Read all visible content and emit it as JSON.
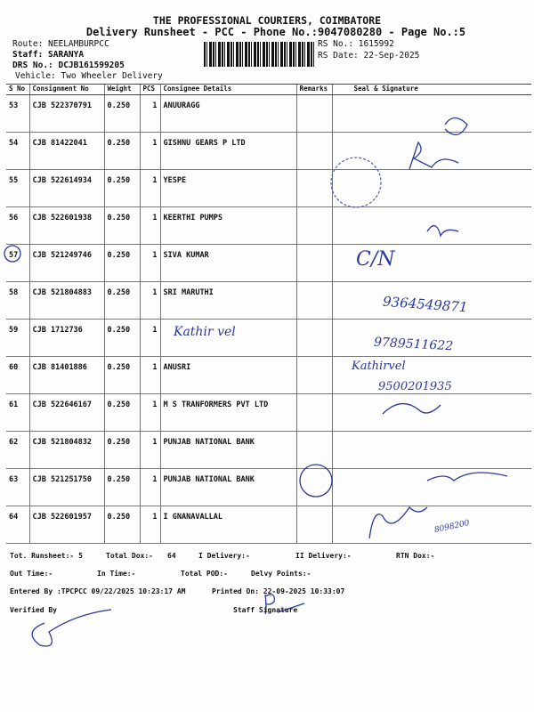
{
  "header": {
    "title": "THE PROFESSIONAL COURIERS, COIMBATORE",
    "subtitle": "Delivery Runsheet - PCC - Phone No.:9047080280 - Page No.:5",
    "route": "Route: NEELAMBURPCC",
    "staff": "Staff: SARANYA",
    "drs_no": "DRS No.: DCJB161599205",
    "vehicle": "Vehicle: Two Wheeler Delivery",
    "rs_no": "RS No.: 1615992",
    "rs_date": "RS Date: 22-Sep-2025"
  },
  "table": {
    "columns": [
      "S No",
      "Consignment No",
      "Weight",
      "PCS",
      "Consignee Details",
      "Remarks",
      "Seal & Signature"
    ],
    "rows": [
      {
        "sno": "53",
        "cn": "CJB 522370791",
        "weight": "0.250",
        "pcs": "1",
        "consignee": "ANUURAGG"
      },
      {
        "sno": "54",
        "cn": "CJB 81422041",
        "weight": "0.250",
        "pcs": "1",
        "consignee": "GISHNU GEARS P LTD"
      },
      {
        "sno": "55",
        "cn": "CJB 522614934",
        "weight": "0.250",
        "pcs": "1",
        "consignee": "YESPE"
      },
      {
        "sno": "56",
        "cn": "CJB 522601938",
        "weight": "0.250",
        "pcs": "1",
        "consignee": "KEERTHI PUMPS"
      },
      {
        "sno": "57",
        "cn": "CJB 521249746",
        "weight": "0.250",
        "pcs": "1",
        "consignee": "SIVA KUMAR"
      },
      {
        "sno": "58",
        "cn": "CJB 521804883",
        "weight": "0.250",
        "pcs": "1",
        "consignee": "SRI MARUTHI"
      },
      {
        "sno": "59",
        "cn": "CJB 1712736",
        "weight": "0.250",
        "pcs": "1",
        "consignee": ""
      },
      {
        "sno": "60",
        "cn": "CJB 81401886",
        "weight": "0.250",
        "pcs": "1",
        "consignee": "ANUSRI"
      },
      {
        "sno": "61",
        "cn": "CJB 522646167",
        "weight": "0.250",
        "pcs": "1",
        "consignee": "M S TRANFORMERS PVT LTD"
      },
      {
        "sno": "62",
        "cn": "CJB 521804832",
        "weight": "0.250",
        "pcs": "1",
        "consignee": "PUNJAB NATIONAL BANK"
      },
      {
        "sno": "63",
        "cn": "CJB 521251750",
        "weight": "0.250",
        "pcs": "1",
        "consignee": "PUNJAB NATIONAL BANK"
      },
      {
        "sno": "64",
        "cn": "CJB 522601957",
        "weight": "0.250",
        "pcs": "1",
        "consignee": "I GNANAVALLAL"
      }
    ]
  },
  "handwriting": {
    "r59_name": "Kathir vel",
    "r57": "C/N",
    "r58_phone": "9364549871",
    "r59_phone": "9789511622",
    "r60_name": "Kathirvel",
    "r60_phone": "9500201935",
    "r64_phone": "8098200"
  },
  "footer": {
    "tot_runsheet": "Tot. Runsheet:- 5",
    "total_dox": "Total Dox:-",
    "total_dox_val": "64",
    "i_delivery": "I Delivery:-",
    "ii_delivery": "II Delivery:-",
    "rtn_dox": "RTN Dox:-",
    "out_time": "Out Time:-",
    "in_time": "In Time:-",
    "total_pod": "Total POD:-",
    "delvy_points": "Delvy Points:-",
    "entered_by": "Entered By :TPCPCC 09/22/2025 10:23:17 AM",
    "printed_on": "Printed On: 22-09-2025 10:33:07",
    "verified_by": "Verified By",
    "staff_signature": "Staff Signature"
  },
  "colors": {
    "ink": "#2a3a9a",
    "print": "#111111"
  }
}
